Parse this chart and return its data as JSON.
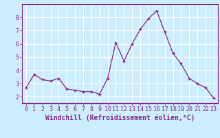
{
  "x": [
    0,
    1,
    2,
    3,
    4,
    5,
    6,
    7,
    8,
    9,
    10,
    11,
    12,
    13,
    14,
    15,
    16,
    17,
    18,
    19,
    20,
    21,
    22,
    23
  ],
  "y": [
    2.7,
    3.7,
    3.3,
    3.2,
    3.4,
    2.6,
    2.5,
    2.4,
    2.4,
    2.2,
    3.4,
    6.1,
    4.7,
    6.0,
    7.1,
    7.9,
    8.5,
    6.9,
    5.3,
    4.5,
    3.4,
    3.0,
    2.7,
    1.9
  ],
  "line_color": "#882288",
  "marker": "+",
  "marker_size": 3.5,
  "marker_linewidth": 1.0,
  "line_width": 0.9,
  "xlabel": "Windchill (Refroidissement éolien,°C)",
  "xlim": [
    -0.5,
    23.5
  ],
  "ylim": [
    1.5,
    9.0
  ],
  "yticks": [
    2,
    3,
    4,
    5,
    6,
    7,
    8
  ],
  "xticks": [
    0,
    1,
    2,
    3,
    4,
    5,
    6,
    7,
    8,
    9,
    10,
    11,
    12,
    13,
    14,
    15,
    16,
    17,
    18,
    19,
    20,
    21,
    22,
    23
  ],
  "bg_color": "#cceeff",
  "plot_bg_color": "#cceeff",
  "grid_color": "#ffffff",
  "border_color": "#882288",
  "tick_color": "#882288",
  "label_color": "#882288",
  "font_size_xlabel": 7.0,
  "font_size_ticks": 6.0
}
